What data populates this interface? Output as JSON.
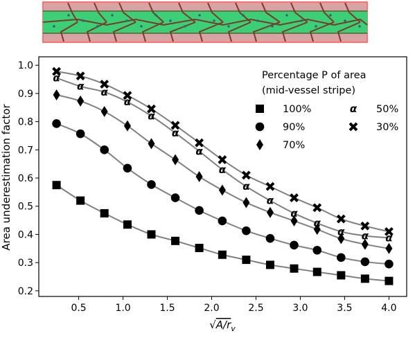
{
  "vessel_illustration": {
    "colors": {
      "outline": "#ff8080",
      "fill": "#c98a8a",
      "stripe": "#3cd07a",
      "cells": "#7a3a2a",
      "nuclei": "#2a6a70"
    }
  },
  "chart_data": {
    "type": "scatter",
    "title": "",
    "xlabel_prefix": "√",
    "xlabel_rest": "A/r",
    "xlabel_sub": "v",
    "ylabel": "Area underestimation factor",
    "xlim": [
      0.05,
      4.2
    ],
    "ylim": [
      0.18,
      1.03
    ],
    "xticks": [
      "0.5",
      "1.0",
      "1.5",
      "2.0",
      "2.5",
      "3.0",
      "3.5",
      "4.0"
    ],
    "yticks": [
      "0.2",
      "0.3",
      "0.4",
      "0.5",
      "0.6",
      "0.7",
      "0.8",
      "0.9",
      "1.0"
    ],
    "legend": {
      "title_line1": "Percentage P of area",
      "title_line2": "(mid-vessel stripe)",
      "placement": "upper-right"
    },
    "line_color": "#808080",
    "marker_color": "#000000",
    "x": [
      0.25,
      0.52,
      0.79,
      1.05,
      1.32,
      1.59,
      1.86,
      2.12,
      2.39,
      2.66,
      2.93,
      3.19,
      3.46,
      3.73,
      4.0
    ],
    "series": [
      {
        "name": "100%",
        "marker": "square",
        "values": [
          0.575,
          0.52,
          0.475,
          0.435,
          0.4,
          0.377,
          0.352,
          0.328,
          0.31,
          0.292,
          0.279,
          0.267,
          0.255,
          0.243,
          0.235
        ]
      },
      {
        "name": "90%",
        "marker": "circle",
        "values": [
          0.793,
          0.757,
          0.7,
          0.635,
          0.577,
          0.53,
          0.485,
          0.448,
          0.413,
          0.386,
          0.362,
          0.344,
          0.318,
          0.303,
          0.295
        ]
      },
      {
        "name": "70%",
        "marker": "diamond",
        "values": [
          0.895,
          0.873,
          0.836,
          0.785,
          0.722,
          0.665,
          0.605,
          0.557,
          0.513,
          0.478,
          0.448,
          0.418,
          0.385,
          0.365,
          0.35
        ]
      },
      {
        "name": "50%",
        "marker": "alpha",
        "values": [
          0.955,
          0.925,
          0.905,
          0.87,
          0.82,
          0.76,
          0.695,
          0.63,
          0.57,
          0.52,
          0.475,
          0.44,
          0.41,
          0.395,
          0.388
        ]
      },
      {
        "name": "30%",
        "marker": "cross",
        "values": [
          0.978,
          0.962,
          0.933,
          0.893,
          0.845,
          0.787,
          0.725,
          0.665,
          0.61,
          0.57,
          0.53,
          0.495,
          0.455,
          0.43,
          0.41
        ]
      }
    ]
  }
}
